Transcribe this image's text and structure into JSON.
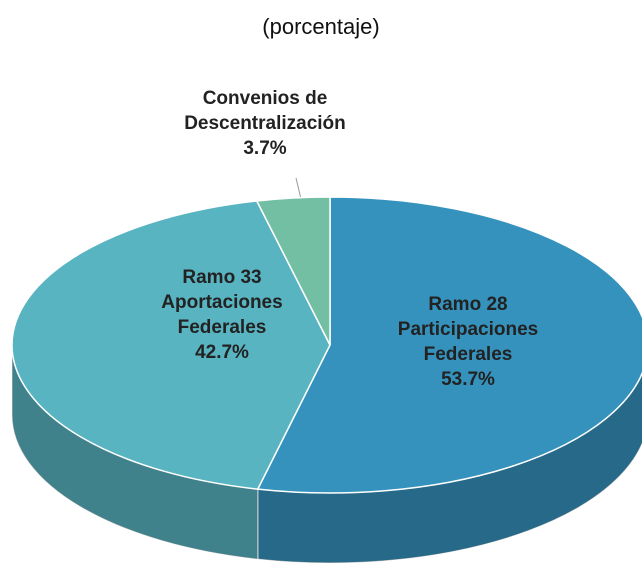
{
  "chart_data": {
    "type": "pie",
    "subtitle": "(porcentaje)",
    "categories": [
      "Ramo 28 Participaciones Federales",
      "Ramo 33 Aportaciones Federales",
      "Convenios de Descentralización"
    ],
    "values": [
      53.7,
      42.7,
      3.7
    ],
    "value_labels": [
      "53.7%",
      "42.7%",
      "3.7%"
    ],
    "colors": [
      "#3592bd",
      "#58b4c1",
      "#72bfa4"
    ]
  }
}
